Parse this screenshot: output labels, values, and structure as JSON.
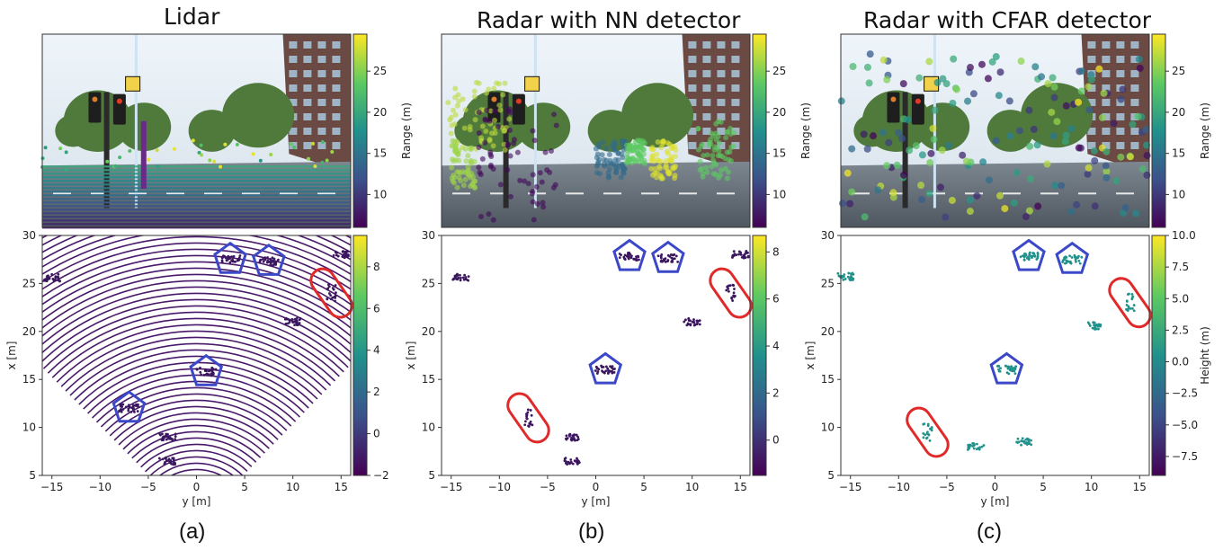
{
  "panels": [
    {
      "title": "Lidar",
      "sublabel": "(a)",
      "camera": {
        "colorbar": {
          "label": "Range (m)",
          "ticks": [
            "10",
            "15",
            "20",
            "25"
          ]
        }
      },
      "bev": {
        "xlabel": "y [m]",
        "ylabel": "x [m]",
        "xticks": [
          "−15",
          "−10",
          "−5",
          "0",
          "5",
          "10",
          "15"
        ],
        "yticks": [
          "5",
          "10",
          "15",
          "20",
          "25",
          "30"
        ],
        "colorbar": {
          "label": "",
          "ticks": [
            "−2",
            "0",
            "2",
            "4",
            "6",
            "8"
          ]
        }
      }
    },
    {
      "title": "Radar with NN detector",
      "sublabel": "(b)",
      "camera": {
        "colorbar": {
          "label": "Range (m)",
          "ticks": [
            "10",
            "15",
            "20",
            "25"
          ]
        }
      },
      "bev": {
        "xlabel": "y [m]",
        "ylabel": "x [m]",
        "xticks": [
          "−15",
          "−10",
          "−5",
          "0",
          "5",
          "10",
          "15"
        ],
        "yticks": [
          "5",
          "10",
          "15",
          "20",
          "25",
          "30"
        ],
        "colorbar": {
          "label": "",
          "ticks": [
            "0",
            "2",
            "4",
            "6",
            "8"
          ]
        }
      }
    },
    {
      "title": "Radar with CFAR detector",
      "sublabel": "(c)",
      "camera": {
        "colorbar": {
          "label": "Range (m)",
          "ticks": [
            "10",
            "15",
            "20",
            "25"
          ]
        }
      },
      "bev": {
        "xlabel": "y [m]",
        "ylabel": "x [m]",
        "xticks": [
          "−15",
          "−10",
          "−5",
          "0",
          "5",
          "10",
          "15"
        ],
        "yticks": [
          "5",
          "10",
          "15",
          "20",
          "25",
          "30"
        ],
        "colorbar": {
          "label": "Height (m)",
          "ticks": [
            "−7.5",
            "−5.0",
            "−2.5",
            "0.0",
            "2.5",
            "5.0",
            "7.5",
            "10.0"
          ]
        }
      }
    }
  ],
  "colors": {
    "pentagon": "#3b48c8",
    "ellipse": "#e02a2a",
    "viridis": [
      "#440154",
      "#3b528b",
      "#21918c",
      "#5ec962",
      "#fde725"
    ]
  },
  "chart_data": [
    {
      "type": "scatter",
      "title": "Lidar",
      "xlabel": "y [m]",
      "ylabel": "x [m]",
      "xlim": [
        -16,
        16
      ],
      "ylim": [
        5,
        30
      ],
      "colorbar_range": [
        -2,
        9.5
      ],
      "pedestrians": [
        [
          -7,
          12
        ],
        [
          1,
          15.8
        ],
        [
          3.5,
          27.5
        ],
        [
          7.5,
          27.3
        ]
      ],
      "cyclists": [
        [
          14,
          24
        ]
      ],
      "objects": [
        [
          -15,
          25.6
        ],
        [
          10,
          21
        ],
        [
          -3,
          9
        ],
        [
          -3,
          6.5
        ],
        [
          15,
          28
        ]
      ]
    },
    {
      "type": "scatter",
      "title": "Radar with NN detector",
      "xlabel": "y [m]",
      "ylabel": "x [m]",
      "xlim": [
        -16,
        16
      ],
      "ylim": [
        5,
        30
      ],
      "colorbar_range": [
        -1.5,
        8.7
      ],
      "pedestrians": [
        [
          1,
          16
        ],
        [
          3.5,
          27.8
        ],
        [
          7.5,
          27.6
        ]
      ],
      "cyclists": [
        [
          -7,
          11
        ],
        [
          14,
          24
        ]
      ],
      "objects": [
        [
          -14,
          25.6
        ],
        [
          10,
          21
        ],
        [
          -2.5,
          9
        ],
        [
          -2.5,
          6.5
        ],
        [
          15,
          28
        ]
      ]
    },
    {
      "type": "scatter",
      "title": "Radar with CFAR detector",
      "xlabel": "y [m]",
      "ylabel": "x [m]",
      "xlim": [
        -16,
        16
      ],
      "ylim": [
        5,
        30
      ],
      "colorbar_range": [
        -9,
        10
      ],
      "pedestrians": [
        [
          1.2,
          16
        ],
        [
          3.5,
          27.8
        ],
        [
          8,
          27.5
        ]
      ],
      "cyclists": [
        [
          -7,
          9.5
        ],
        [
          14,
          23
        ]
      ],
      "objects": [
        [
          10.5,
          20.6
        ],
        [
          -2,
          8
        ],
        [
          3,
          8.5
        ],
        [
          -15.5,
          25.7
        ]
      ]
    }
  ]
}
